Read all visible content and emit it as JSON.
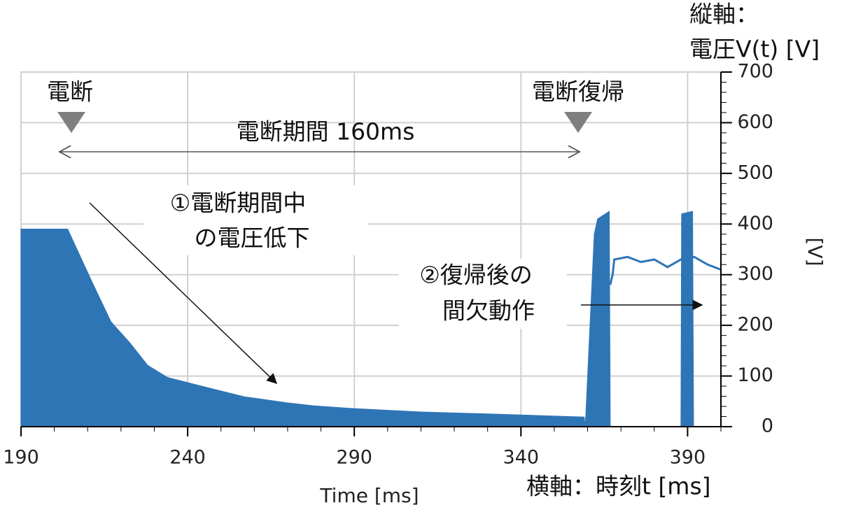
{
  "chart_data": {
    "type": "area",
    "xlabel": "Time [ms]",
    "ylabel": "[V]",
    "xlim": [
      190,
      400
    ],
    "ylim": [
      0,
      700
    ],
    "xticks": [
      190,
      240,
      290,
      340,
      390
    ],
    "yticks": [
      0,
      100,
      200,
      300,
      400,
      500,
      600,
      700
    ],
    "grid": true,
    "series": [
      {
        "style": "area",
        "color": "#2e75b6",
        "x": [
          190,
          204,
          211,
          217,
          222.6,
          228,
          234,
          246.6,
          257,
          270,
          278,
          289,
          310,
          331,
          359,
          359.3,
          362,
          363,
          366.5,
          366.8,
          388,
          388.2,
          391.5,
          391.8
        ],
        "values": [
          390,
          390,
          290,
          207,
          166,
          121,
          97,
          76,
          59,
          47,
          41,
          36,
          29,
          25,
          19,
          0,
          380,
          410,
          425,
          0,
          0,
          420,
          425,
          0
        ]
      },
      {
        "style": "line",
        "color": "#2e75b6",
        "x": [
          366.8,
          367.5,
          368,
          372,
          376,
          380,
          384,
          388,
          392,
          396,
          400
        ],
        "values": [
          280,
          300,
          330,
          335,
          325,
          330,
          315,
          330,
          335,
          320,
          310
        ]
      }
    ],
    "annotations": [
      "電断",
      "電断復帰",
      "電断期間 160ms",
      "①電断期間中",
      "の電圧低下",
      "②復帰後の",
      "間欠動作",
      "縦軸：",
      "電圧V(t) [V]",
      "横軸：時刻t [ms]"
    ]
  }
}
